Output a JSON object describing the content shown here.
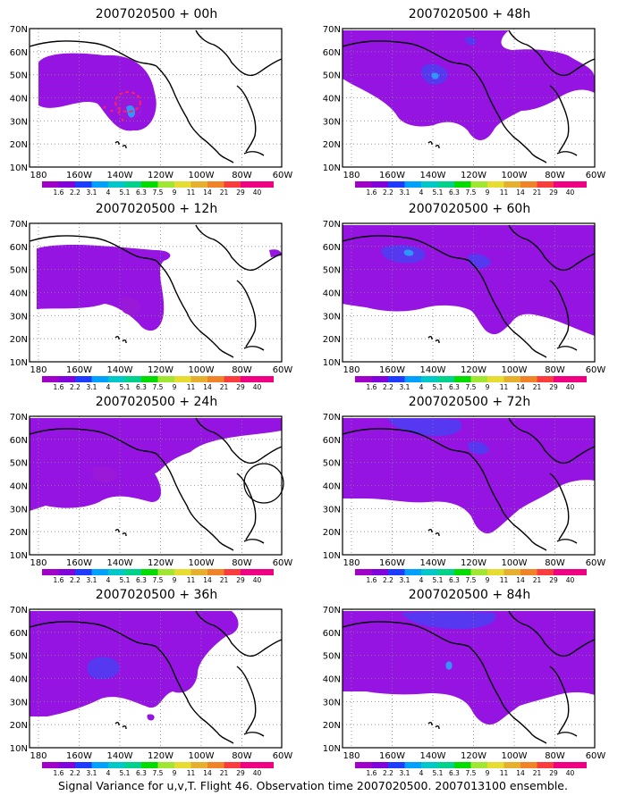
{
  "figure": {
    "caption": "Signal Variance for u,v,T. Flight 46. Observation time 2007020500. 2007013100 ensemble.",
    "lat_labels": [
      "70N",
      "60N",
      "50N",
      "40N",
      "30N",
      "20N",
      "10N"
    ],
    "lon_labels": [
      "180",
      "160W",
      "140W",
      "120W",
      "100W",
      "80W",
      "60W"
    ],
    "colorbar": {
      "labels": [
        "1.6",
        "2.2",
        "3.1",
        "4",
        "5.1",
        "6.3",
        "7.5",
        "9",
        "11",
        "14",
        "21",
        "29",
        "40"
      ],
      "colors": [
        "#a000c8",
        "#8200dc",
        "#1e3cff",
        "#00a0ff",
        "#00c8c8",
        "#00d28c",
        "#00dc00",
        "#a0e632",
        "#e6dc32",
        "#e6af2d",
        "#f08228",
        "#fa3c3c",
        "#f00082"
      ]
    },
    "panels": [
      {
        "title": "2007020500 + 00h",
        "lead_hours": 0
      },
      {
        "title": "2007020500 + 12h",
        "lead_hours": 12
      },
      {
        "title": "2007020500 + 24h",
        "lead_hours": 24
      },
      {
        "title": "2007020500 + 36h",
        "lead_hours": 36
      },
      {
        "title": "2007020500 + 48h",
        "lead_hours": 48
      },
      {
        "title": "2007020500 + 60h",
        "lead_hours": 60
      },
      {
        "title": "2007020500 + 72h",
        "lead_hours": 72
      },
      {
        "title": "2007020500 + 84h",
        "lead_hours": 84
      }
    ]
  }
}
